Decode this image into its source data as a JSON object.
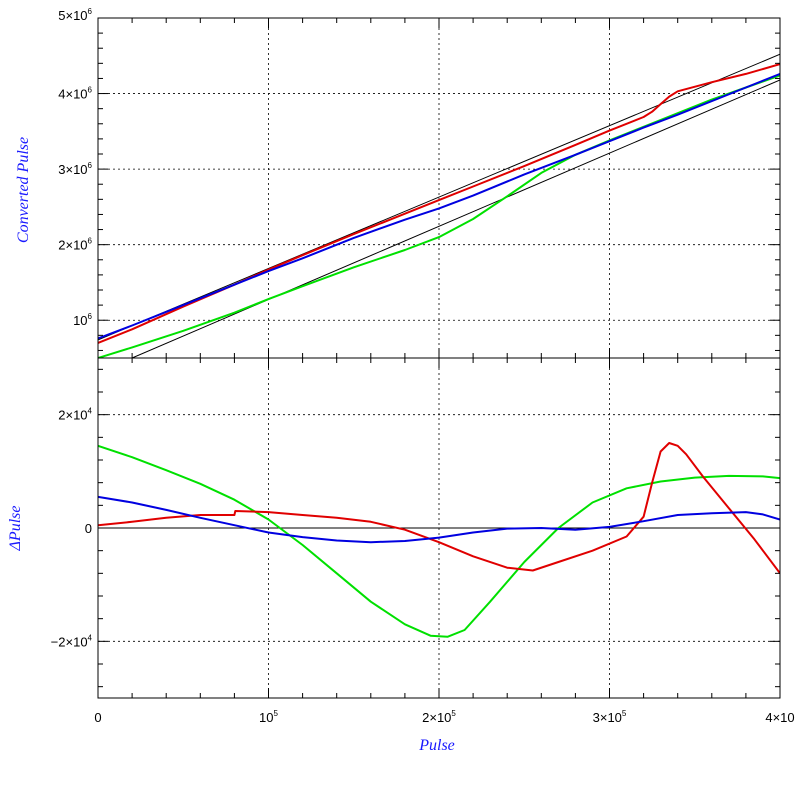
{
  "chart_data": [
    {
      "type": "line",
      "panel": "top",
      "xlim": [
        0,
        400000
      ],
      "ylim": [
        500000,
        5000000
      ],
      "ylabel": "Converted Pulse",
      "xlabel": "",
      "grid": true,
      "y_ticks": [
        {
          "v": 1000000,
          "m": "10",
          "e": "6"
        },
        {
          "v": 2000000,
          "m": "2×10",
          "e": "6"
        },
        {
          "v": 3000000,
          "m": "3×10",
          "e": "6"
        },
        {
          "v": 4000000,
          "m": "4×10",
          "e": "6"
        },
        {
          "v": 5000000,
          "m": "5×10",
          "e": "6"
        }
      ],
      "reference_lines": [
        {
          "x": [
            0,
            400000
          ],
          "y": [
            740000,
            4520000
          ]
        },
        {
          "x": [
            20000,
            400000
          ],
          "y": [
            500000,
            4180000
          ]
        }
      ],
      "series": [
        {
          "color": "#00e000",
          "x": [
            0,
            20000,
            50000,
            80000,
            100000,
            120000,
            150000,
            180000,
            200000,
            220000,
            240000,
            260000,
            280000,
            300000,
            320000,
            340000,
            360000,
            380000,
            400000
          ],
          "y": [
            500000,
            640000,
            860000,
            1100000,
            1280000,
            1450000,
            1700000,
            1930000,
            2100000,
            2340000,
            2640000,
            2950000,
            3190000,
            3380000,
            3560000,
            3740000,
            3920000,
            4080000,
            4240000
          ]
        },
        {
          "color": "#e00000",
          "x": [
            0,
            20000,
            50000,
            80000,
            100000,
            120000,
            150000,
            180000,
            200000,
            220000,
            250000,
            280000,
            300000,
            320000,
            325000,
            330000,
            335000,
            340000,
            360000,
            380000,
            400000
          ],
          "y": [
            700000,
            880000,
            1180000,
            1470000,
            1670000,
            1860000,
            2140000,
            2410000,
            2590000,
            2770000,
            3040000,
            3320000,
            3510000,
            3690000,
            3760000,
            3860000,
            3960000,
            4030000,
            4150000,
            4260000,
            4390000
          ]
        },
        {
          "color": "#0000e0",
          "x": [
            0,
            20000,
            50000,
            80000,
            100000,
            120000,
            150000,
            180000,
            200000,
            220000,
            250000,
            280000,
            300000,
            320000,
            340000,
            360000,
            380000,
            400000
          ],
          "y": [
            760000,
            930000,
            1200000,
            1470000,
            1650000,
            1820000,
            2090000,
            2330000,
            2480000,
            2650000,
            2930000,
            3190000,
            3370000,
            3550000,
            3720000,
            3900000,
            4080000,
            4260000
          ]
        }
      ]
    },
    {
      "type": "line",
      "panel": "bottom",
      "xlim": [
        0,
        400000
      ],
      "ylim": [
        -30000,
        30000
      ],
      "ylabel": "ΔPulse",
      "xlabel": "Pulse",
      "grid": true,
      "x_ticks": [
        {
          "v": 0,
          "m": "0",
          "e": ""
        },
        {
          "v": 100000,
          "m": "10",
          "e": "5"
        },
        {
          "v": 200000,
          "m": "2×10",
          "e": "5"
        },
        {
          "v": 300000,
          "m": "3×10",
          "e": "5"
        },
        {
          "v": 400000,
          "m": "4×10",
          "e": ""
        }
      ],
      "y_ticks": [
        {
          "v": -20000,
          "m": "−2×10",
          "e": "4"
        },
        {
          "v": 0,
          "m": "0",
          "e": ""
        },
        {
          "v": 20000,
          "m": "2×10",
          "e": "4"
        }
      ],
      "reference_lines": [
        {
          "x": [
            0,
            400000
          ],
          "y": [
            0,
            0
          ]
        }
      ],
      "series": [
        {
          "color": "#00e000",
          "x": [
            0,
            20000,
            40000,
            60000,
            80000,
            100000,
            120000,
            140000,
            160000,
            180000,
            195000,
            205000,
            215000,
            230000,
            250000,
            270000,
            290000,
            310000,
            330000,
            350000,
            370000,
            390000,
            400000
          ],
          "y": [
            14500,
            12500,
            10200,
            7800,
            5000,
            1500,
            -3000,
            -8000,
            -13000,
            -17000,
            -19000,
            -19200,
            -18000,
            -13000,
            -6000,
            0,
            4500,
            7000,
            8200,
            8900,
            9200,
            9100,
            8800
          ]
        },
        {
          "color": "#e00000",
          "x": [
            0,
            20000,
            40000,
            60000,
            80000,
            80500,
            100000,
            120000,
            140000,
            160000,
            180000,
            200000,
            220000,
            240000,
            255000,
            270000,
            290000,
            310000,
            320000,
            325000,
            330000,
            335000,
            340000,
            345000,
            355000,
            370000,
            385000,
            400000
          ],
          "y": [
            500,
            1100,
            1800,
            2300,
            2300,
            3000,
            2800,
            2300,
            1800,
            1100,
            -300,
            -2500,
            -5000,
            -7000,
            -7500,
            -6000,
            -4000,
            -1500,
            2000,
            8000,
            13500,
            15000,
            14500,
            13000,
            9000,
            3500,
            -2000,
            -8000
          ]
        },
        {
          "color": "#0000e0",
          "x": [
            0,
            20000,
            40000,
            60000,
            80000,
            100000,
            120000,
            140000,
            160000,
            180000,
            200000,
            220000,
            240000,
            260000,
            280000,
            300000,
            320000,
            340000,
            360000,
            380000,
            390000,
            400000
          ],
          "y": [
            5500,
            4500,
            3200,
            1800,
            500,
            -800,
            -1600,
            -2200,
            -2500,
            -2300,
            -1700,
            -800,
            -100,
            0,
            -300,
            200,
            1200,
            2300,
            2600,
            2800,
            2400,
            1500
          ]
        }
      ]
    }
  ]
}
